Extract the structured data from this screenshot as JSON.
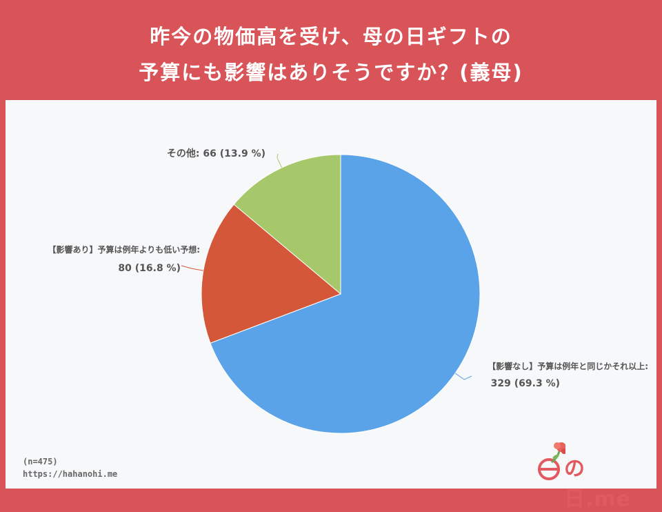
{
  "header": {
    "title_line1": "昨今の物価高を受け、母の日ギフトの",
    "title_line2": "予算にも影響はありそうですか？(義母)"
  },
  "chart_data": {
    "type": "pie",
    "slices": [
      {
        "label": "【影響なし】予算は例年と同じかそれ以上:",
        "value": 329,
        "percent": 69.3,
        "display": "329 (69.3 %)",
        "color": "#5ba3e8"
      },
      {
        "label": "【影響あり】予算は例年よりも低い予想:",
        "value": 80,
        "percent": 16.8,
        "display": "80 (16.8 %)",
        "color": "#d4573a"
      },
      {
        "label": "その他:",
        "value": 66,
        "percent": 13.9,
        "display": "66 (13.9 %)",
        "color": "#a6c86a"
      }
    ]
  },
  "footer": {
    "sample_size": "(n=475)",
    "url": "https://hahanohi.me"
  },
  "logo": {
    "text": "の日.me"
  },
  "colors": {
    "background": "#d95459",
    "panel": "#f7f8fa",
    "label_text": "#555555"
  }
}
